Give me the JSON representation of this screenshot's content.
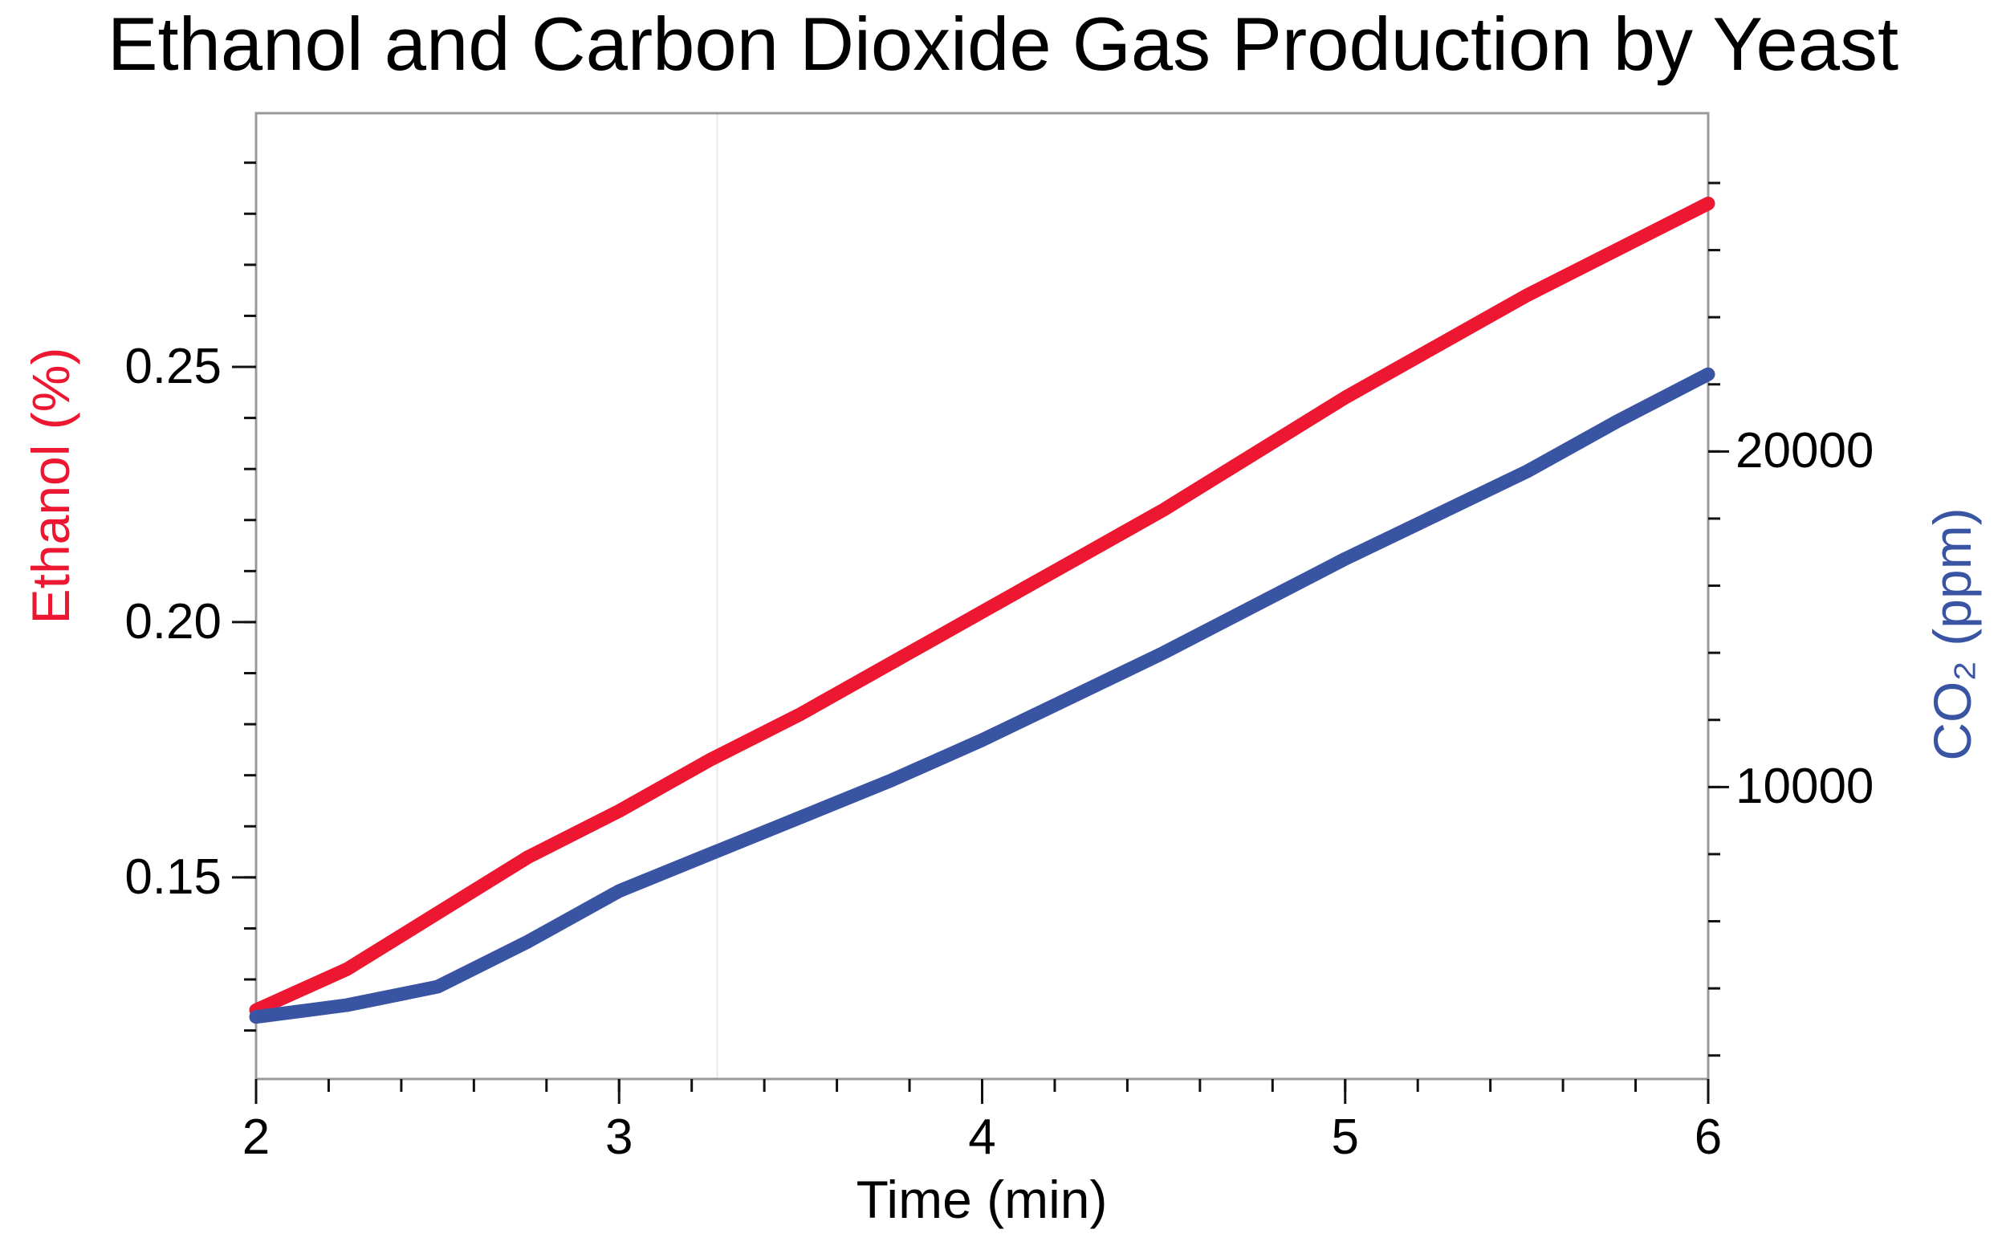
{
  "chart_data": {
    "type": "line",
    "title": "Ethanol and Carbon Dioxide Gas Production by Yeast",
    "legend": "none (dual y-axis, axis labels are color-coded to series)",
    "x_axis": {
      "label": "Time  (min)",
      "range": [
        2,
        6
      ],
      "major_ticks": [
        {
          "value": 2,
          "label": "2"
        },
        {
          "value": 3,
          "label": "3"
        },
        {
          "value": 4,
          "label": "4"
        },
        {
          "value": 5,
          "label": "5"
        },
        {
          "value": 6,
          "label": "6"
        }
      ],
      "minor_tick_step": 0.2
    },
    "left_axis": {
      "label": "Ethanol  (%)",
      "color": "#ED1731",
      "range": [
        0.1105,
        0.2997
      ],
      "labeled_ticks": [
        {
          "value": 0.15,
          "label": "0.15"
        },
        {
          "value": 0.2,
          "label": "0.20"
        },
        {
          "value": 0.25,
          "label": "0.25"
        }
      ],
      "minor_tick_step": 0.01,
      "minor_tick_min": 0.12,
      "minor_tick_max": 0.29
    },
    "right_axis": {
      "label": "CO₂ (ppm)",
      "color": "#3A54A4",
      "range": [
        1300,
        30080
      ],
      "labeled_ticks": [
        {
          "value": 10000,
          "label": "10000"
        },
        {
          "value": 20000,
          "label": "20000"
        }
      ],
      "minor_tick_step": 2000,
      "minor_tick_min": 2000,
      "minor_tick_max": 28000
    },
    "reference_line": {
      "x": 3.27,
      "color": "#e9e9e9"
    },
    "frame_color": "#999999",
    "tick_color": "#111111",
    "series": [
      {
        "name": "Ethanol (%)",
        "yaxis": "left",
        "color": "#ED1731",
        "stroke_width": 17,
        "x": [
          2.0,
          2.25,
          2.5,
          2.75,
          3.0,
          3.25,
          3.5,
          3.75,
          4.0,
          4.25,
          4.5,
          4.75,
          5.0,
          5.25,
          5.5,
          5.75,
          6.0
        ],
        "y": [
          0.124,
          0.132,
          0.143,
          0.154,
          0.163,
          0.173,
          0.182,
          0.192,
          0.202,
          0.212,
          0.222,
          0.233,
          0.244,
          0.254,
          0.264,
          0.273,
          0.282
        ]
      },
      {
        "name": "CO₂ (ppm)",
        "yaxis": "right",
        "color": "#3A54A4",
        "stroke_width": 17,
        "x": [
          2.0,
          2.25,
          2.5,
          2.75,
          3.0,
          3.25,
          3.5,
          3.75,
          4.0,
          4.25,
          4.5,
          4.75,
          5.0,
          5.25,
          5.5,
          5.75,
          6.0
        ],
        "y": [
          3150,
          3500,
          4050,
          5400,
          6900,
          8000,
          9100,
          10200,
          11400,
          12700,
          14000,
          15400,
          16800,
          18100,
          19400,
          20900,
          22300
        ]
      }
    ]
  }
}
